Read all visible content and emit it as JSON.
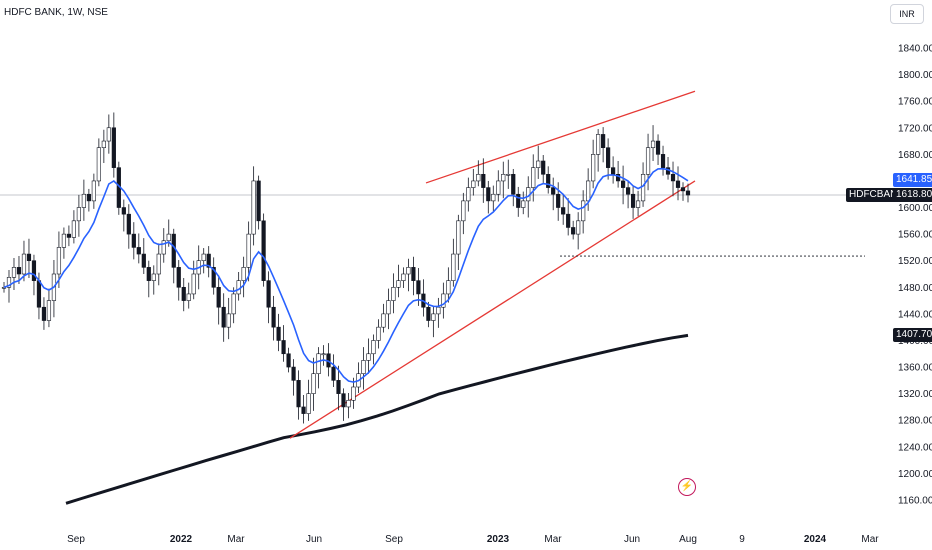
{
  "header": {
    "title": "HDFC BANK, 1W, NSE",
    "currency": "INR"
  },
  "price_tags": {
    "last": {
      "value": "1641.85",
      "bg": "#2962ff",
      "fg": "#ffffff"
    },
    "symbol_label": {
      "name": "HDFCBANK",
      "value": "1618.80",
      "bg": "#131722",
      "fg": "#ffffff"
    },
    "sma_long": {
      "value": "1407.70",
      "bg": "#131722",
      "fg": "#ffffff"
    }
  },
  "colors": {
    "ema": "#2962ff",
    "sma_long": "#131722",
    "channel": "#e53935",
    "up_candle": "#ffffff",
    "down_candle": "#131722"
  },
  "icons": {
    "alert": "lightning-icon"
  },
  "chart_data": {
    "type": "candlestick",
    "ylim": [
      1150,
      1860
    ],
    "y_ticks": [
      1160,
      1200,
      1240,
      1280,
      1320,
      1360,
      1400,
      1440,
      1480,
      1520,
      1560,
      1600,
      1640,
      1680,
      1720,
      1760,
      1800,
      1840
    ],
    "x_ticks": [
      {
        "label": "Sep",
        "bold": false
      },
      {
        "label": "2022",
        "bold": true
      },
      {
        "label": "Mar",
        "bold": false
      },
      {
        "label": "Jun",
        "bold": false
      },
      {
        "label": "Sep",
        "bold": false
      },
      {
        "label": "2023",
        "bold": true
      },
      {
        "label": "Mar",
        "bold": false
      },
      {
        "label": "Jun",
        "bold": false
      },
      {
        "label": "Aug",
        "bold": false
      },
      {
        "label": "9",
        "bold": false
      },
      {
        "label": "2024",
        "bold": true
      },
      {
        "label": "Mar",
        "bold": false
      }
    ],
    "closes": [
      1480,
      1495,
      1510,
      1500,
      1530,
      1520,
      1490,
      1450,
      1430,
      1460,
      1500,
      1540,
      1560,
      1555,
      1580,
      1600,
      1620,
      1610,
      1640,
      1690,
      1700,
      1720,
      1660,
      1600,
      1590,
      1560,
      1540,
      1530,
      1510,
      1490,
      1500,
      1530,
      1550,
      1560,
      1510,
      1480,
      1460,
      1470,
      1500,
      1520,
      1530,
      1510,
      1480,
      1450,
      1420,
      1440,
      1470,
      1490,
      1510,
      1560,
      1640,
      1580,
      1490,
      1450,
      1420,
      1400,
      1380,
      1360,
      1340,
      1300,
      1290,
      1320,
      1350,
      1380,
      1380,
      1360,
      1340,
      1320,
      1300,
      1310,
      1330,
      1350,
      1370,
      1380,
      1400,
      1420,
      1440,
      1460,
      1480,
      1490,
      1500,
      1510,
      1490,
      1470,
      1450,
      1430,
      1440,
      1450,
      1470,
      1490,
      1530,
      1580,
      1610,
      1630,
      1640,
      1650,
      1630,
      1610,
      1620,
      1640,
      1650,
      1650,
      1620,
      1600,
      1610,
      1630,
      1660,
      1670,
      1650,
      1630,
      1620,
      1600,
      1590,
      1570,
      1560,
      1580,
      1610,
      1640,
      1680,
      1710,
      1690,
      1660,
      1650,
      1640,
      1630,
      1620,
      1600,
      1610,
      1650,
      1690,
      1700,
      1680,
      1660,
      1650,
      1640,
      1630,
      1625,
      1618.8
    ],
    "channel": {
      "upper": [
        [
          "2022-10",
          "1640"
        ],
        [
          "2023-07",
          "1780"
        ]
      ],
      "lower": [
        [
          "2022-05",
          "1255"
        ],
        [
          "2023-08",
          "1640"
        ]
      ]
    },
    "support_level": 1527,
    "last_price": 1641.85,
    "close_price": 1618.8,
    "sma_long_value": 1407.7
  }
}
